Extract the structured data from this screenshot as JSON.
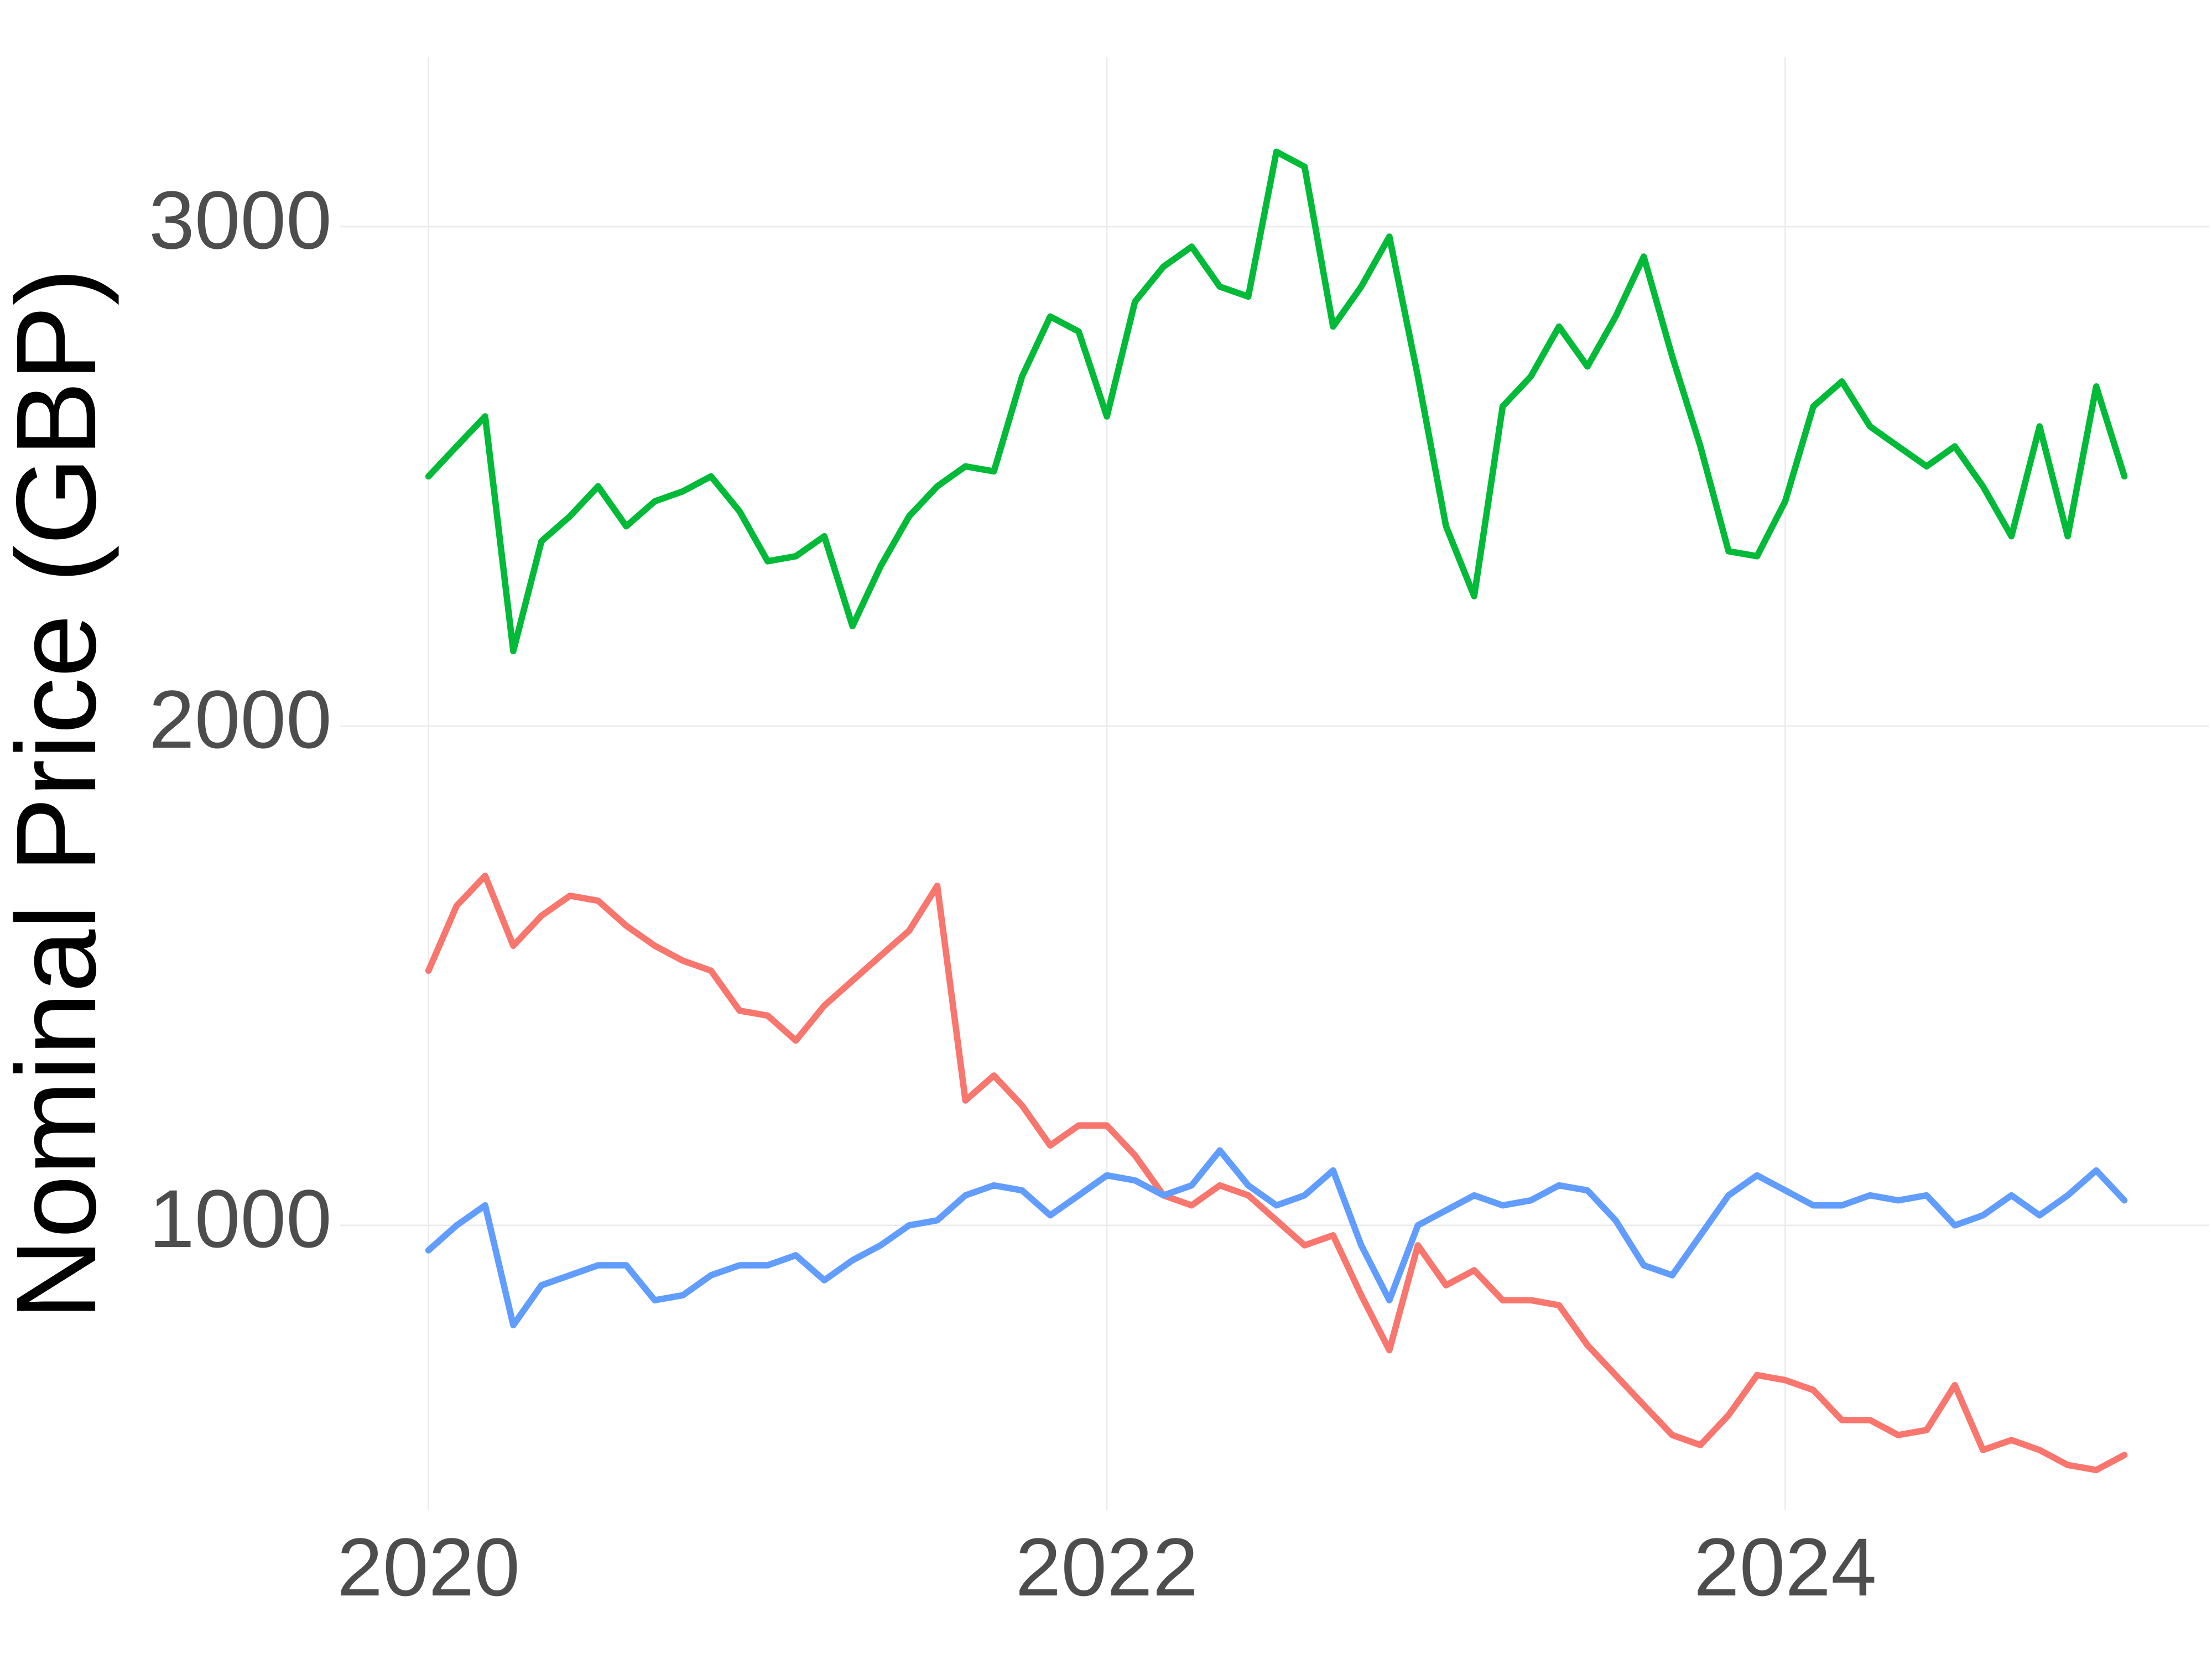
{
  "chart_data": {
    "type": "line",
    "y_label": "Nominal Price (GBP)",
    "x": [
      2020,
      2020.083,
      2020.167,
      2020.25,
      2020.333,
      2020.417,
      2020.5,
      2020.583,
      2020.667,
      2020.75,
      2020.833,
      2020.917,
      2021,
      2021.083,
      2021.167,
      2021.25,
      2021.333,
      2021.417,
      2021.5,
      2021.583,
      2021.667,
      2021.75,
      2021.833,
      2021.917,
      2022,
      2022.083,
      2022.167,
      2022.25,
      2022.333,
      2022.417,
      2022.5,
      2022.583,
      2022.667,
      2022.75,
      2022.833,
      2022.917,
      2023,
      2023.083,
      2023.167,
      2023.25,
      2023.333,
      2023.417,
      2023.5,
      2023.583,
      2023.667,
      2023.75,
      2023.833,
      2023.917,
      2024,
      2024.083,
      2024.167,
      2024.25,
      2024.333,
      2024.417,
      2024.5,
      2024.583,
      2024.667,
      2024.75,
      2024.833,
      2024.917,
      2025
    ],
    "series": [
      {
        "color": "#F8766D",
        "values": [
          1510,
          1640,
          1700,
          1560,
          1620,
          1660,
          1650,
          1600,
          1560,
          1530,
          1510,
          1430,
          1420,
          1370,
          1440,
          1490,
          1540,
          1590,
          1680,
          1250,
          1300,
          1240,
          1160,
          1200,
          1200,
          1140,
          1060,
          1040,
          1080,
          1060,
          1010,
          960,
          980,
          860,
          750,
          960,
          880,
          910,
          850,
          850,
          840,
          760,
          700,
          640,
          580,
          560,
          620,
          700,
          690,
          670,
          610,
          610,
          580,
          590,
          680,
          550,
          570,
          550,
          520,
          510,
          540
        ]
      },
      {
        "color": "#00BA38",
        "values": [
          2500,
          2560,
          2620,
          2150,
          2370,
          2420,
          2480,
          2400,
          2450,
          2470,
          2500,
          2430,
          2330,
          2340,
          2380,
          2200,
          2320,
          2420,
          2480,
          2520,
          2510,
          2700,
          2820,
          2790,
          2620,
          2850,
          2920,
          2960,
          2880,
          2860,
          3150,
          3120,
          2800,
          2880,
          2980,
          2700,
          2400,
          2260,
          2640,
          2700,
          2800,
          2720,
          2820,
          2940,
          2740,
          2560,
          2350,
          2340,
          2450,
          2640,
          2690,
          2600,
          2560,
          2520,
          2560,
          2480,
          2380,
          2600,
          2380,
          2680,
          2500
        ]
      },
      {
        "color": "#619CFF",
        "values": [
          950,
          1000,
          1040,
          800,
          880,
          900,
          920,
          920,
          850,
          860,
          900,
          920,
          920,
          940,
          890,
          930,
          960,
          1000,
          1010,
          1060,
          1080,
          1070,
          1020,
          1060,
          1100,
          1090,
          1060,
          1080,
          1150,
          1080,
          1040,
          1060,
          1110,
          960,
          850,
          1000,
          1030,
          1060,
          1040,
          1050,
          1080,
          1070,
          1010,
          920,
          900,
          980,
          1060,
          1100,
          1070,
          1040,
          1040,
          1060,
          1050,
          1060,
          1000,
          1020,
          1060,
          1020,
          1060,
          1110,
          1050
        ]
      }
    ],
    "xlim": [
      2019.74,
      2025.25
    ],
    "xticks": [
      2020,
      2022,
      2024
    ],
    "ylim": [
      430,
      3340
    ],
    "yticks": [
      1000,
      2000,
      3000
    ],
    "grid": true
  }
}
